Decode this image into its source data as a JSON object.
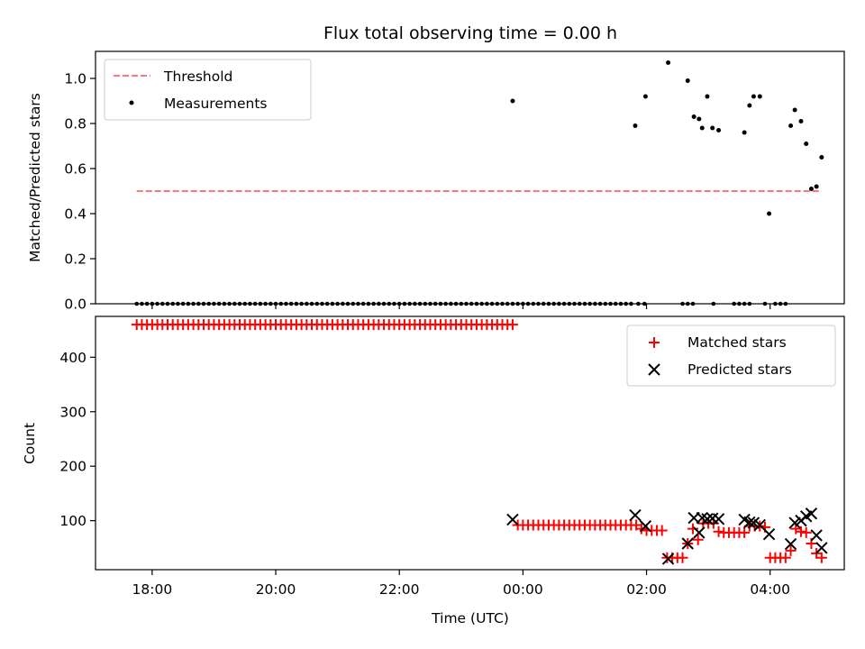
{
  "chart_data": [
    {
      "type": "scatter",
      "title": "Flux total observing time = 0.00 h",
      "ylabel": "Matched/Predicted stars",
      "xlabel": "",
      "ylim": [
        0,
        1.12
      ],
      "yticks": [
        {
          "value": 0.0,
          "label": "0.0"
        },
        {
          "value": 0.2,
          "label": "0.2"
        },
        {
          "value": 0.4,
          "label": "0.4"
        },
        {
          "value": 0.6,
          "label": "0.6"
        },
        {
          "value": 0.8,
          "label": "0.8"
        },
        {
          "value": 1.0,
          "label": "1.0"
        }
      ],
      "legend": {
        "placement": "upper-left",
        "entries": [
          {
            "label": "Threshold",
            "style": "dashed-line",
            "color": "#ff7777"
          },
          {
            "label": "Measurements",
            "style": "dot",
            "color": "#000000"
          }
        ]
      },
      "threshold": {
        "value": 0.5,
        "x_start": "17:45",
        "x_end": "04:50",
        "color": "#ff7777"
      },
      "zero_series": {
        "y": 0,
        "x_ranges": [
          [
            "17:45",
            "23:50"
          ],
          [
            "23:55",
            "01:45"
          ]
        ],
        "x_points": [
          "01:52",
          "01:58",
          "02:35",
          "02:40",
          "02:45",
          "03:05",
          "03:25",
          "03:30",
          "03:35",
          "03:40",
          "03:55",
          "04:05",
          "04:10",
          "04:15"
        ],
        "step_min": 5
      },
      "points": [
        {
          "x": "23:50",
          "y": 0.9
        },
        {
          "x": "01:49",
          "y": 0.79
        },
        {
          "x": "01:59",
          "y": 0.92
        },
        {
          "x": "02:21",
          "y": 1.07
        },
        {
          "x": "02:40",
          "y": 0.99
        },
        {
          "x": "02:46",
          "y": 0.83
        },
        {
          "x": "02:51",
          "y": 0.82
        },
        {
          "x": "02:54",
          "y": 0.78
        },
        {
          "x": "02:59",
          "y": 0.92
        },
        {
          "x": "03:04",
          "y": 0.78
        },
        {
          "x": "03:10",
          "y": 0.77
        },
        {
          "x": "03:35",
          "y": 0.76
        },
        {
          "x": "03:40",
          "y": 0.88
        },
        {
          "x": "03:44",
          "y": 0.92
        },
        {
          "x": "03:50",
          "y": 0.92
        },
        {
          "x": "03:59",
          "y": 0.4
        },
        {
          "x": "04:20",
          "y": 0.79
        },
        {
          "x": "04:24",
          "y": 0.86
        },
        {
          "x": "04:30",
          "y": 0.81
        },
        {
          "x": "04:35",
          "y": 0.71
        },
        {
          "x": "04:40",
          "y": 0.51
        },
        {
          "x": "04:45",
          "y": 0.52
        },
        {
          "x": "04:50",
          "y": 0.65
        }
      ]
    },
    {
      "type": "scatter",
      "title": "",
      "ylabel": "Count",
      "xlabel": "Time (UTC)",
      "ylim": [
        10,
        475
      ],
      "yticks": [
        {
          "value": 100,
          "label": "100"
        },
        {
          "value": 200,
          "label": "200"
        },
        {
          "value": 300,
          "label": "300"
        },
        {
          "value": 400,
          "label": "400"
        }
      ],
      "xticks": [
        {
          "value": "18:00",
          "label": "18:00"
        },
        {
          "value": "20:00",
          "label": "20:00"
        },
        {
          "value": "22:00",
          "label": "22:00"
        },
        {
          "value": "00:00",
          "label": "00:00"
        },
        {
          "value": "02:00",
          "label": "02:00"
        },
        {
          "value": "04:00",
          "label": "04:00"
        }
      ],
      "xlim": [
        "17:05",
        "05:12"
      ],
      "legend": {
        "placement": "upper-right",
        "entries": [
          {
            "label": "Matched stars",
            "style": "plus",
            "color": "#ff0000"
          },
          {
            "label": "Predicted stars",
            "style": "x",
            "color": "#000000"
          }
        ]
      },
      "matched_runs": [
        {
          "from": "17:45",
          "to": "23:50",
          "step_min": 5,
          "y": 460
        },
        {
          "from": "23:55",
          "to": "01:45",
          "step_min": 5,
          "y": 92
        }
      ],
      "matched_points": [
        {
          "x": "01:50",
          "y": 92
        },
        {
          "x": "01:55",
          "y": 85
        },
        {
          "x": "02:00",
          "y": 82
        },
        {
          "x": "02:05",
          "y": 82
        },
        {
          "x": "02:10",
          "y": 82
        },
        {
          "x": "02:15",
          "y": 82
        },
        {
          "x": "02:20",
          "y": 32
        },
        {
          "x": "02:25",
          "y": 32
        },
        {
          "x": "02:30",
          "y": 32
        },
        {
          "x": "02:35",
          "y": 32
        },
        {
          "x": "02:40",
          "y": 58
        },
        {
          "x": "02:45",
          "y": 85
        },
        {
          "x": "02:50",
          "y": 65
        },
        {
          "x": "02:55",
          "y": 95
        },
        {
          "x": "03:00",
          "y": 95
        },
        {
          "x": "03:05",
          "y": 95
        },
        {
          "x": "03:10",
          "y": 80
        },
        {
          "x": "03:15",
          "y": 78
        },
        {
          "x": "03:20",
          "y": 78
        },
        {
          "x": "03:25",
          "y": 78
        },
        {
          "x": "03:30",
          "y": 78
        },
        {
          "x": "03:35",
          "y": 78
        },
        {
          "x": "03:40",
          "y": 90
        },
        {
          "x": "03:45",
          "y": 90
        },
        {
          "x": "03:50",
          "y": 90
        },
        {
          "x": "03:55",
          "y": 88
        },
        {
          "x": "04:00",
          "y": 32
        },
        {
          "x": "04:05",
          "y": 32
        },
        {
          "x": "04:10",
          "y": 32
        },
        {
          "x": "04:15",
          "y": 32
        },
        {
          "x": "04:20",
          "y": 45
        },
        {
          "x": "04:25",
          "y": 85
        },
        {
          "x": "04:30",
          "y": 80
        },
        {
          "x": "04:35",
          "y": 78
        },
        {
          "x": "04:40",
          "y": 58
        },
        {
          "x": "04:45",
          "y": 40
        },
        {
          "x": "04:50",
          "y": 32
        }
      ],
      "predicted_points": [
        {
          "x": "23:50",
          "y": 102
        },
        {
          "x": "01:49",
          "y": 110
        },
        {
          "x": "01:59",
          "y": 90
        },
        {
          "x": "02:21",
          "y": 30
        },
        {
          "x": "02:40",
          "y": 58
        },
        {
          "x": "02:46",
          "y": 105
        },
        {
          "x": "02:51",
          "y": 78
        },
        {
          "x": "02:54",
          "y": 105
        },
        {
          "x": "02:59",
          "y": 103
        },
        {
          "x": "03:04",
          "y": 104
        },
        {
          "x": "03:10",
          "y": 103
        },
        {
          "x": "03:35",
          "y": 102
        },
        {
          "x": "03:40",
          "y": 97
        },
        {
          "x": "03:44",
          "y": 96
        },
        {
          "x": "03:50",
          "y": 92
        },
        {
          "x": "03:59",
          "y": 75
        },
        {
          "x": "04:20",
          "y": 57
        },
        {
          "x": "04:24",
          "y": 96
        },
        {
          "x": "04:30",
          "y": 100
        },
        {
          "x": "04:35",
          "y": 108
        },
        {
          "x": "04:40",
          "y": 113
        },
        {
          "x": "04:45",
          "y": 73
        },
        {
          "x": "04:50",
          "y": 50
        }
      ]
    }
  ]
}
